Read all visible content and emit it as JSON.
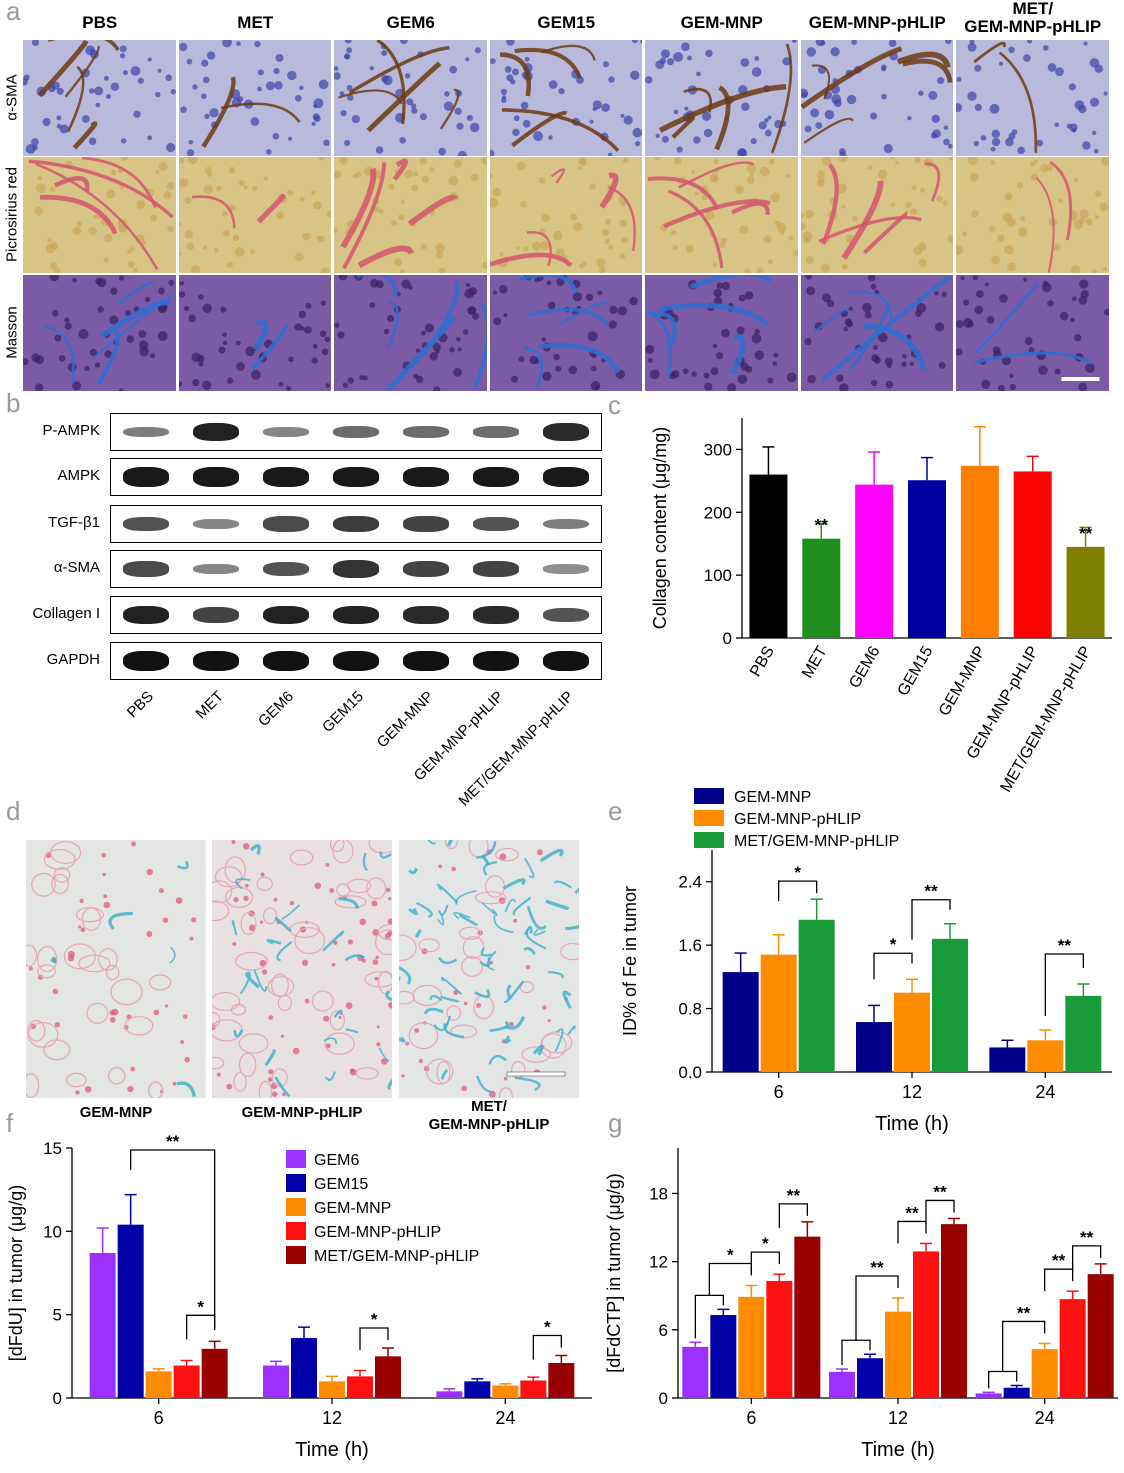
{
  "panel_letters": [
    "a",
    "b",
    "c",
    "d",
    "e",
    "f",
    "g"
  ],
  "panel_a": {
    "columns": [
      "PBS",
      "MET",
      "GEM6",
      "GEM15",
      "GEM-MNP",
      "GEM-MNP-pHLIP",
      "MET/\nGEM-MNP-pHLIP"
    ],
    "rows": [
      "α-SMA",
      "Picrosirius red",
      "Masson"
    ]
  },
  "panel_b": {
    "rows": [
      "P-AMPK",
      "AMPK",
      "TGF-β1",
      "α-SMA",
      "Collagen I",
      "GAPDH"
    ],
    "lanes": [
      "PBS",
      "MET",
      "GEM6",
      "GEM15",
      "GEM-MNP",
      "GEM-MNP-pHLIP",
      "MET/GEM-MNP-pHLIP"
    ],
    "band_intensity": [
      [
        0.35,
        0.9,
        0.3,
        0.45,
        0.45,
        0.45,
        0.85
      ],
      [
        0.95,
        0.95,
        0.95,
        0.95,
        0.95,
        0.95,
        0.95
      ],
      [
        0.6,
        0.3,
        0.65,
        0.75,
        0.7,
        0.6,
        0.35
      ],
      [
        0.65,
        0.3,
        0.6,
        0.8,
        0.7,
        0.7,
        0.25
      ],
      [
        0.9,
        0.7,
        0.9,
        0.9,
        0.85,
        0.85,
        0.6
      ],
      [
        1,
        1,
        1,
        1,
        1,
        1,
        1
      ]
    ]
  },
  "panel_d": {
    "captions": [
      "GEM-MNP",
      "GEM-MNP-pHLIP",
      "MET/\nGEM-MNP-pHLIP"
    ]
  },
  "chart_data": [
    {
      "id": "c",
      "type": "bar",
      "categories": [
        "PBS",
        "MET",
        "GEM6",
        "GEM15",
        "GEM-MNP",
        "GEM-MNP-pHLIP",
        "MET/GEM-MNP-pHLIP"
      ],
      "values": [
        260,
        158,
        244,
        251,
        274,
        265,
        145
      ],
      "errors": [
        44,
        24,
        52,
        36,
        62,
        24,
        31
      ],
      "colors": [
        "#000000",
        "#1e8f1e",
        "#ff00ff",
        "#0000a0",
        "#ff8000",
        "#ff0000",
        "#808000"
      ],
      "significance": [
        "",
        "**",
        "",
        "",
        "",
        "",
        "**"
      ],
      "ylabel": "Collagen content (μg/mg)",
      "ylim": [
        0,
        350
      ],
      "yticks": [
        0,
        100,
        200,
        300
      ]
    },
    {
      "id": "e",
      "type": "bar",
      "categories": [
        "6",
        "12",
        "24"
      ],
      "xlabel": "Time (h)",
      "ylabel": "ID% of Fe in tumor",
      "ylim": [
        0,
        2.8
      ],
      "yticks": [
        "0.0",
        "0.8",
        "1.6",
        "2.4"
      ],
      "series": [
        {
          "name": "GEM-MNP",
          "color": "#00008b",
          "values": [
            1.26,
            0.63,
            0.31
          ],
          "errors": [
            0.24,
            0.21,
            0.09
          ]
        },
        {
          "name": "GEM-MNP-pHLIP",
          "color": "#ff8c00",
          "values": [
            1.48,
            1.0,
            0.4
          ],
          "errors": [
            0.25,
            0.17,
            0.13
          ]
        },
        {
          "name": "MET/GEM-MNP-pHLIP",
          "color": "#1a9b3a",
          "values": [
            1.92,
            1.68,
            0.96
          ],
          "errors": [
            0.26,
            0.19,
            0.15
          ]
        }
      ],
      "significance": [
        "*",
        "*",
        "**",
        "**"
      ]
    },
    {
      "id": "f",
      "type": "bar",
      "categories": [
        "6",
        "12",
        "24"
      ],
      "xlabel": "Time (h)",
      "ylabel": "[dFdU] in tumor (μg/g)",
      "ylim": [
        0,
        15
      ],
      "yticks": [
        "0",
        "5",
        "10",
        "15"
      ],
      "series": [
        {
          "name": "GEM6",
          "color": "#9b30ff",
          "values": [
            8.7,
            1.95,
            0.4
          ],
          "errors": [
            1.5,
            0.25,
            0.15
          ]
        },
        {
          "name": "GEM15",
          "color": "#0000a8",
          "values": [
            10.4,
            3.6,
            1.0
          ],
          "errors": [
            1.8,
            0.65,
            0.15
          ]
        },
        {
          "name": "GEM-MNP",
          "color": "#ff8c00",
          "values": [
            1.6,
            1.0,
            0.75
          ],
          "errors": [
            0.15,
            0.3,
            0.1
          ]
        },
        {
          "name": "GEM-MNP-pHLIP",
          "color": "#ff1010",
          "values": [
            1.95,
            1.3,
            1.05
          ],
          "errors": [
            0.3,
            0.35,
            0.2
          ]
        },
        {
          "name": "MET/GEM-MNP-pHLIP",
          "color": "#990000",
          "values": [
            2.95,
            2.5,
            2.1
          ],
          "errors": [
            0.45,
            0.5,
            0.45
          ]
        }
      ],
      "significance": [
        "**",
        "*",
        "*",
        "*"
      ]
    },
    {
      "id": "g",
      "type": "bar",
      "categories": [
        "6",
        "12",
        "24"
      ],
      "xlabel": "Time (h)",
      "ylabel": "[dFdCTP] in tumor (μg/g)",
      "ylim": [
        0,
        22
      ],
      "yticks": [
        "0",
        "6",
        "12",
        "18"
      ],
      "series": [
        {
          "name": "GEM6",
          "color": "#9b30ff",
          "values": [
            4.5,
            2.3,
            0.4
          ],
          "errors": [
            0.4,
            0.25,
            0.1
          ]
        },
        {
          "name": "GEM15",
          "color": "#0000a8",
          "values": [
            7.3,
            3.5,
            0.9
          ],
          "errors": [
            0.5,
            0.35,
            0.2
          ]
        },
        {
          "name": "GEM-MNP",
          "color": "#ff8c00",
          "values": [
            8.9,
            7.6,
            4.3
          ],
          "errors": [
            1.0,
            1.2,
            0.5
          ]
        },
        {
          "name": "GEM-MNP-pHLIP",
          "color": "#ff1010",
          "values": [
            10.3,
            12.9,
            8.7
          ],
          "errors": [
            0.6,
            0.7,
            0.7
          ]
        },
        {
          "name": "MET/GEM-MNP-pHLIP",
          "color": "#990000",
          "values": [
            14.2,
            15.3,
            10.9
          ],
          "errors": [
            1.3,
            0.5,
            0.9
          ]
        }
      ],
      "significance": [
        "*",
        "*",
        "**",
        "**",
        "**",
        "**",
        "**",
        "**",
        "**"
      ]
    }
  ]
}
